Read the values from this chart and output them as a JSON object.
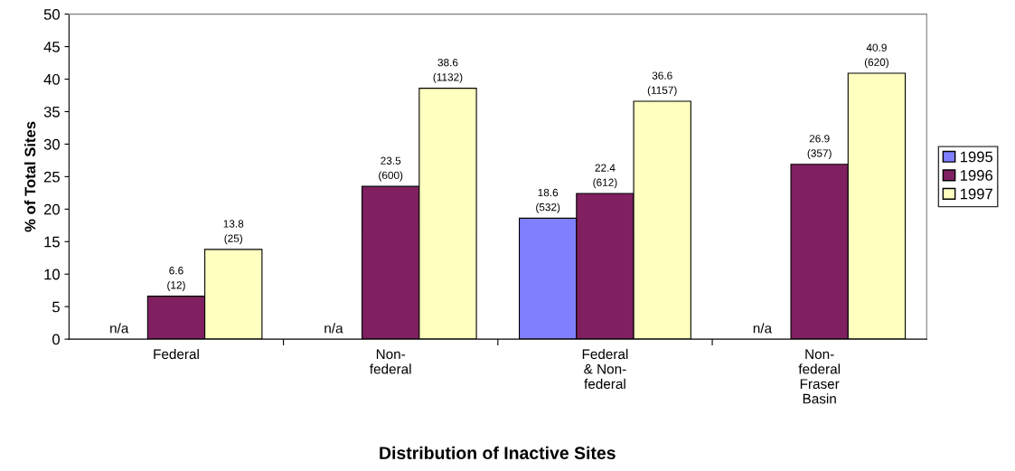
{
  "chart_data": {
    "type": "bar",
    "title": "Distribution of Inactive Sites",
    "ylabel": "% of Total Sites",
    "categories": [
      "Federal",
      "Non-\nfederal",
      "Federal\n& Non-\nfederal",
      "Non-\nfederal\nFraser\nBasin"
    ],
    "series": [
      {
        "name": "1995",
        "color": "#8080ff",
        "values": [
          null,
          null,
          18.6,
          null
        ],
        "value_labels": [
          "n/a",
          "n/a",
          "18.6\n(532)",
          "n/a"
        ]
      },
      {
        "name": "1996",
        "color": "#802060",
        "values": [
          6.6,
          23.5,
          22.4,
          26.9
        ],
        "value_labels": [
          "6.6\n(12)",
          "23.5\n(600)",
          "22.4\n(612)",
          "26.9\n(357)"
        ]
      },
      {
        "name": "1997",
        "color": "#ffffc0",
        "values": [
          13.8,
          38.6,
          36.6,
          40.9
        ],
        "value_labels": [
          "13.8\n(25)",
          "38.6\n(1132)",
          "36.6\n(1157)",
          "40.9\n(620)"
        ]
      }
    ],
    "ylim": [
      0,
      50
    ],
    "yticks": [
      0,
      5,
      10,
      15,
      20,
      25,
      30,
      35,
      40,
      45,
      50
    ],
    "grid": false,
    "legend": "right"
  }
}
